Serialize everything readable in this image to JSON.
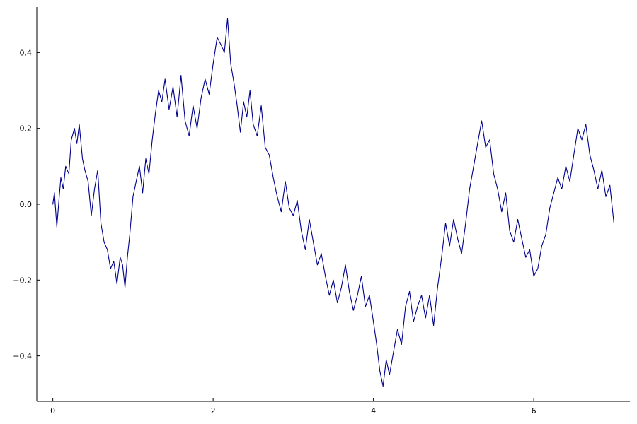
{
  "chart_data": {
    "type": "line",
    "title": "",
    "xlabel": "",
    "ylabel": "",
    "xlim": [
      -0.2,
      7.2
    ],
    "ylim": [
      -0.52,
      0.52
    ],
    "grid": false,
    "legend": "none",
    "xticks": [
      0,
      2,
      4,
      6
    ],
    "xtick_labels": [
      "0",
      "2",
      "4",
      "6"
    ],
    "yticks": [
      -0.4,
      -0.2,
      0.0,
      0.2,
      0.4
    ],
    "ytick_labels": [
      "−0.4",
      "−0.2",
      "0.0",
      "0.2",
      "0.4"
    ],
    "series": [
      {
        "color": "#00008b",
        "x": [
          0.0,
          0.02,
          0.05,
          0.08,
          0.1,
          0.13,
          0.16,
          0.2,
          0.23,
          0.27,
          0.3,
          0.33,
          0.37,
          0.4,
          0.44,
          0.48,
          0.52,
          0.56,
          0.6,
          0.64,
          0.68,
          0.72,
          0.76,
          0.8,
          0.84,
          0.87,
          0.9,
          0.93,
          0.96,
          1.0,
          1.04,
          1.08,
          1.12,
          1.16,
          1.2,
          1.24,
          1.28,
          1.32,
          1.36,
          1.4,
          1.45,
          1.5,
          1.55,
          1.6,
          1.65,
          1.7,
          1.75,
          1.8,
          1.85,
          1.9,
          1.95,
          2.0,
          2.05,
          2.1,
          2.14,
          2.18,
          2.22,
          2.26,
          2.3,
          2.34,
          2.38,
          2.42,
          2.46,
          2.5,
          2.55,
          2.6,
          2.65,
          2.7,
          2.75,
          2.8,
          2.85,
          2.9,
          2.95,
          3.0,
          3.05,
          3.1,
          3.15,
          3.2,
          3.25,
          3.3,
          3.35,
          3.4,
          3.45,
          3.5,
          3.55,
          3.6,
          3.65,
          3.7,
          3.75,
          3.8,
          3.85,
          3.9,
          3.95,
          4.0,
          4.04,
          4.08,
          4.12,
          4.16,
          4.2,
          4.25,
          4.3,
          4.35,
          4.4,
          4.45,
          4.5,
          4.55,
          4.6,
          4.65,
          4.7,
          4.75,
          4.8,
          4.85,
          4.9,
          4.95,
          5.0,
          5.05,
          5.1,
          5.15,
          5.2,
          5.25,
          5.3,
          5.35,
          5.4,
          5.45,
          5.5,
          5.55,
          5.6,
          5.65,
          5.7,
          5.75,
          5.8,
          5.85,
          5.9,
          5.95,
          6.0,
          6.05,
          6.1,
          6.15,
          6.2,
          6.25,
          6.3,
          6.35,
          6.4,
          6.45,
          6.5,
          6.55,
          6.6,
          6.65,
          6.7,
          6.75,
          6.8,
          6.85,
          6.9,
          6.95,
          7.0
        ],
        "y": [
          0.0,
          0.03,
          -0.06,
          0.02,
          0.07,
          0.04,
          0.1,
          0.08,
          0.17,
          0.2,
          0.16,
          0.21,
          0.12,
          0.09,
          0.06,
          -0.03,
          0.04,
          0.09,
          -0.05,
          -0.1,
          -0.12,
          -0.17,
          -0.15,
          -0.21,
          -0.14,
          -0.16,
          -0.22,
          -0.14,
          -0.08,
          0.02,
          0.06,
          0.1,
          0.03,
          0.12,
          0.08,
          0.17,
          0.24,
          0.3,
          0.27,
          0.33,
          0.25,
          0.31,
          0.23,
          0.34,
          0.22,
          0.18,
          0.26,
          0.2,
          0.28,
          0.33,
          0.29,
          0.37,
          0.44,
          0.42,
          0.4,
          0.49,
          0.37,
          0.32,
          0.26,
          0.19,
          0.27,
          0.23,
          0.3,
          0.21,
          0.18,
          0.26,
          0.15,
          0.13,
          0.07,
          0.02,
          -0.02,
          0.06,
          -0.01,
          -0.03,
          0.01,
          -0.07,
          -0.12,
          -0.04,
          -0.1,
          -0.16,
          -0.13,
          -0.19,
          -0.24,
          -0.2,
          -0.26,
          -0.22,
          -0.16,
          -0.23,
          -0.28,
          -0.24,
          -0.19,
          -0.27,
          -0.24,
          -0.31,
          -0.37,
          -0.44,
          -0.48,
          -0.41,
          -0.45,
          -0.39,
          -0.33,
          -0.37,
          -0.27,
          -0.23,
          -0.31,
          -0.27,
          -0.24,
          -0.3,
          -0.24,
          -0.32,
          -0.22,
          -0.14,
          -0.05,
          -0.11,
          -0.04,
          -0.09,
          -0.13,
          -0.05,
          0.04,
          0.1,
          0.16,
          0.22,
          0.15,
          0.17,
          0.08,
          0.04,
          -0.02,
          0.03,
          -0.07,
          -0.1,
          -0.04,
          -0.09,
          -0.14,
          -0.12,
          -0.19,
          -0.17,
          -0.11,
          -0.08,
          -0.01,
          0.03,
          0.07,
          0.04,
          0.1,
          0.06,
          0.13,
          0.2,
          0.17,
          0.21,
          0.13,
          0.09,
          0.04,
          0.09,
          0.02,
          0.05,
          -0.05
        ]
      }
    ]
  }
}
